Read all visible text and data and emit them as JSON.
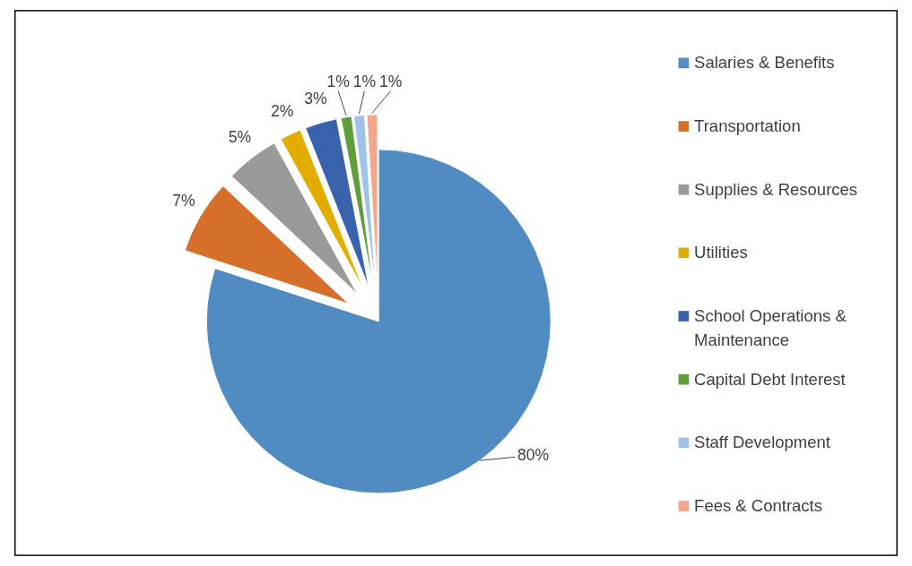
{
  "chart_data": {
    "type": "pie",
    "categories": [
      "Salaries & Benefits",
      "Transportation",
      "Supplies & Resources",
      "Utilities",
      "School Operations & Maintenance",
      "Capital Debt Interest",
      "Staff Development",
      "Fees & Contracts"
    ],
    "values": [
      80,
      7,
      5,
      2,
      3,
      1,
      1,
      1
    ],
    "colors": [
      "#508bc1",
      "#d66f2a",
      "#9a9a9a",
      "#e3ad00",
      "#3a63ae",
      "#5f9e3b",
      "#9ec3e6",
      "#f3a68c"
    ],
    "value_labels": [
      "80%",
      "7%",
      "5%",
      "2%",
      "3%",
      "1%",
      "1%",
      "1%"
    ],
    "legend": "right"
  }
}
